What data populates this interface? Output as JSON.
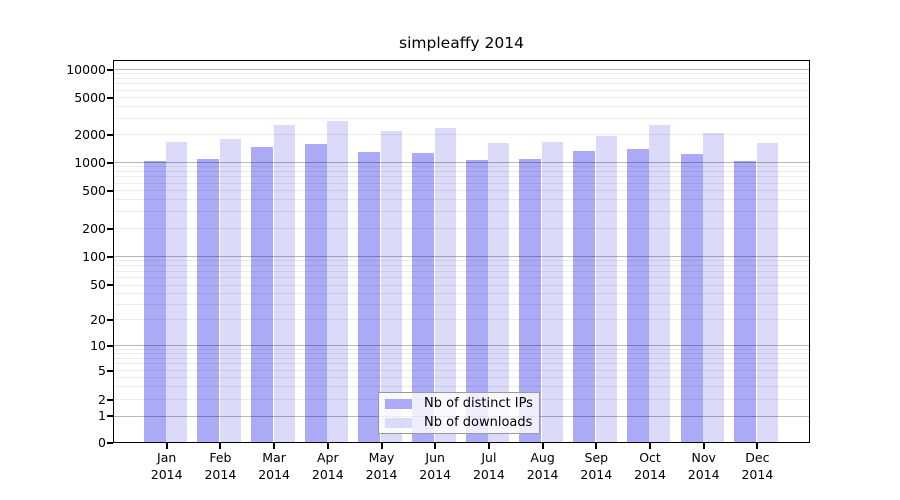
{
  "chart_data": {
    "type": "bar",
    "title": "simpleaffy 2014",
    "categories": [
      "Jan",
      "Feb",
      "Mar",
      "Apr",
      "May",
      "Jun",
      "Jul",
      "Aug",
      "Sep",
      "Oct",
      "Nov",
      "Dec"
    ],
    "xtick_year": "2014",
    "series": [
      {
        "name": "Nb of distinct IPs",
        "color": "#aaaaf7",
        "values": [
          1050,
          1100,
          1480,
          1600,
          1310,
          1260,
          1070,
          1100,
          1340,
          1390,
          1230,
          1050
        ]
      },
      {
        "name": "Nb of downloads",
        "color": "#dbdbf9",
        "values": [
          1660,
          1780,
          2530,
          2800,
          2180,
          2370,
          1620,
          1650,
          1950,
          2540,
          2060,
          1640
        ]
      }
    ],
    "yscale": "symlog",
    "yticks": [
      0,
      1,
      2,
      5,
      10,
      20,
      50,
      100,
      200,
      500,
      1000,
      2000,
      5000,
      10000
    ],
    "ylim": [
      0,
      12500
    ],
    "grid": true,
    "legend_position": "lower center"
  }
}
